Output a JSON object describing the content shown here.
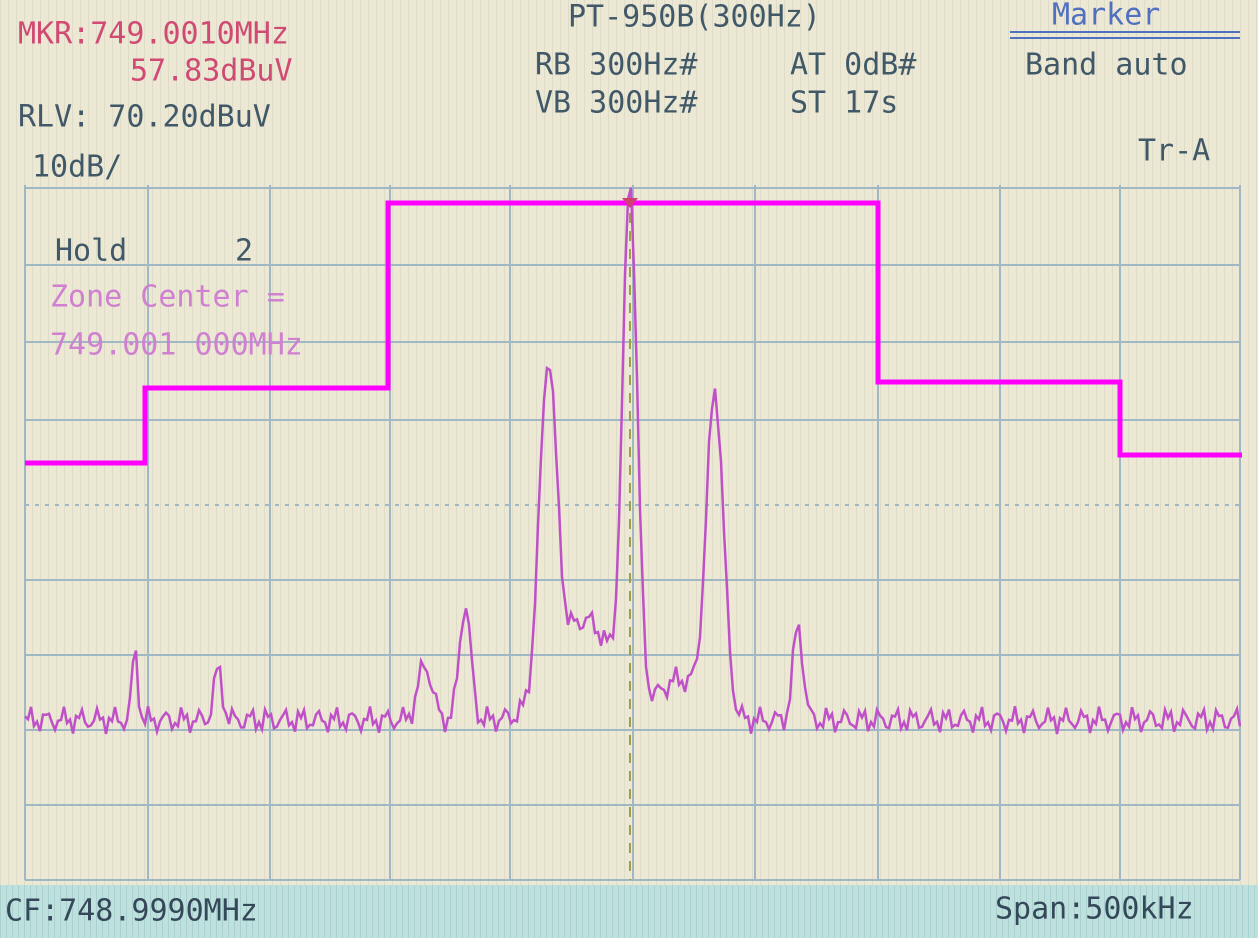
{
  "marker": {
    "frequency": "MKR:749.0010MHz",
    "level": "57.83dBuV"
  },
  "reference_level": "RLV: 70.20dBuV",
  "scale": "10dB/",
  "header": {
    "title": "PT-950B(300Hz)",
    "rbw": "RB 300Hz#",
    "attenuation": "AT 0dB#",
    "vbw": "VB 300Hz#",
    "sweep_time": "ST 17s"
  },
  "menu": {
    "title": "Marker",
    "item": "Band auto"
  },
  "trace": "Tr-A",
  "hold": {
    "label": "Hold",
    "count": "2"
  },
  "zone_center": {
    "label": "Zone Center =",
    "value": "749.001 000MHz"
  },
  "footer": {
    "center_frequency": "CF:748.9990MHz",
    "span": "Span:500kHz"
  }
}
